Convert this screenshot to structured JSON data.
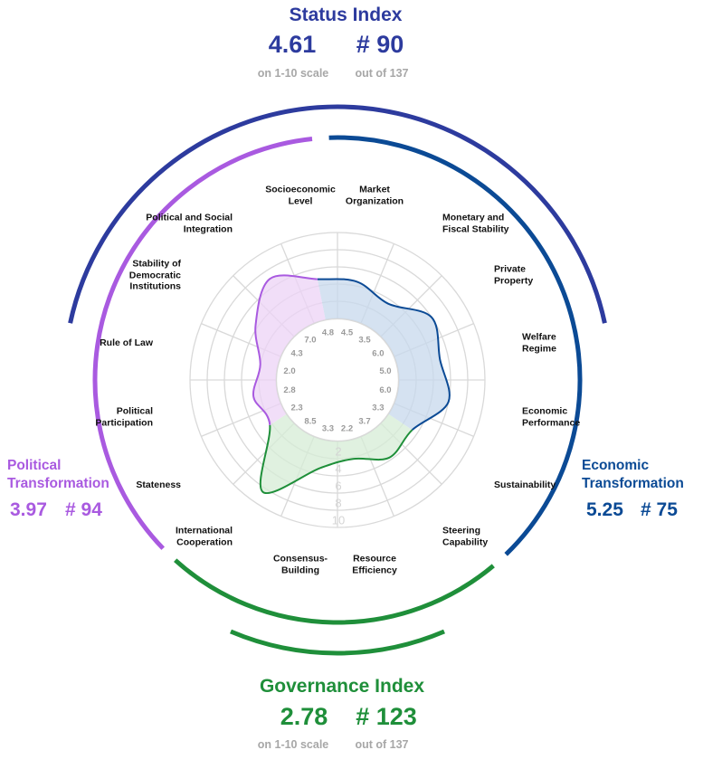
{
  "status": {
    "title": "Status Index",
    "score": "4.61",
    "rank": "# 90",
    "score_note": "on 1-10 scale",
    "rank_note": "out of 137"
  },
  "governance": {
    "title": "Governance Index",
    "score": "2.78",
    "rank": "# 123",
    "score_note": "on 1-10 scale",
    "rank_note": "out of 137"
  },
  "political": {
    "title_line1": "Political",
    "title_line2": "Transformation",
    "score": "3.97",
    "rank": "# 94"
  },
  "economic": {
    "title_line1": "Economic",
    "title_line2": "Transformation",
    "score": "5.25",
    "rank": "# 75"
  },
  "colors": {
    "status": "#2d3b9e",
    "economic": "#0b4a95",
    "political": "#a95ae0",
    "governance": "#1f8f3a",
    "grid": "#d9d9d9"
  },
  "chart_data": {
    "type": "radar",
    "scale_ticks": [
      "2",
      "4",
      "6",
      "8",
      "10"
    ],
    "rlim": [
      0,
      10
    ],
    "categories": [
      {
        "label": [
          "Socioeconomic",
          "Level"
        ],
        "value": 4.8,
        "group": "economic"
      },
      {
        "label": [
          "Market",
          "Organization"
        ],
        "value": 4.5,
        "group": "economic"
      },
      {
        "label": [
          "Monetary and",
          "Fiscal Stability"
        ],
        "value": 3.5,
        "group": "economic"
      },
      {
        "label": [
          "Private",
          "Property"
        ],
        "value": 6.0,
        "group": "economic"
      },
      {
        "label": [
          "Welfare",
          "Regime"
        ],
        "value": 5.0,
        "group": "economic"
      },
      {
        "label": [
          "Economic",
          "Performance"
        ],
        "value": 6.0,
        "group": "economic"
      },
      {
        "label": [
          "Sustainability"
        ],
        "value": 3.3,
        "group": "economic"
      },
      {
        "label": [
          "Steering",
          "Capability"
        ],
        "value": 3.7,
        "group": "governance"
      },
      {
        "label": [
          "Resource",
          "Efficiency"
        ],
        "value": 2.2,
        "group": "governance"
      },
      {
        "label": [
          "Consensus-",
          "Building"
        ],
        "value": 3.3,
        "group": "governance"
      },
      {
        "label": [
          "International",
          "Cooperation"
        ],
        "value": 8.5,
        "group": "governance"
      },
      {
        "label": [
          "Stateness"
        ],
        "value": 2.3,
        "group": "political"
      },
      {
        "label": [
          "Political",
          "Participation"
        ],
        "value": 2.8,
        "group": "political"
      },
      {
        "label": [
          "Rule of Law"
        ],
        "value": 2.0,
        "group": "political"
      },
      {
        "label": [
          "Stability of",
          "Democratic",
          "Institutions"
        ],
        "value": 4.3,
        "group": "political"
      },
      {
        "label": [
          "Political and Social",
          "Integration"
        ],
        "value": 7.0,
        "group": "political"
      }
    ]
  }
}
